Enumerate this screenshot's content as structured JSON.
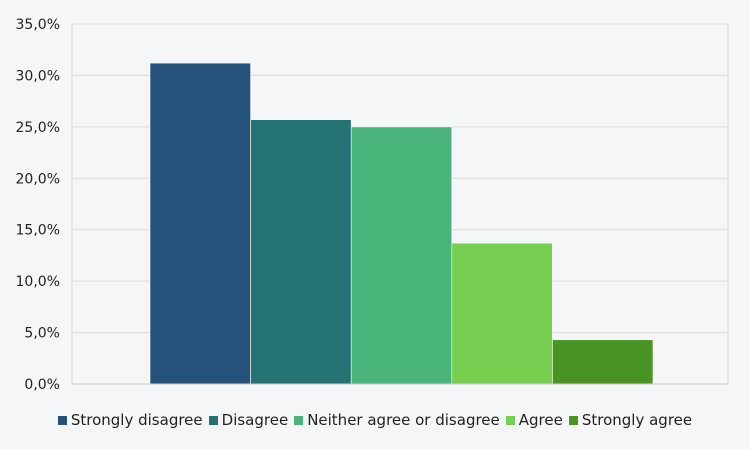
{
  "chart_data": {
    "type": "bar",
    "categories": [
      "Strongly disagree",
      "Disagree",
      "Neither agree or disagree",
      "Agree",
      "Strongly agree"
    ],
    "values": [
      31.2,
      25.7,
      25.0,
      13.7,
      4.3
    ],
    "colors": [
      "#25527a",
      "#237274",
      "#48b47a",
      "#77cf52",
      "#4a9426"
    ],
    "ylim": [
      0,
      35
    ],
    "yticks": [
      "0,0%",
      "5,0%",
      "10,0%",
      "15,0%",
      "20,0%",
      "25,0%",
      "30,0%",
      "35,0%"
    ],
    "ytick_values": [
      0,
      5,
      10,
      15,
      20,
      25,
      30,
      35
    ],
    "grid": true,
    "legend": "bottom"
  }
}
